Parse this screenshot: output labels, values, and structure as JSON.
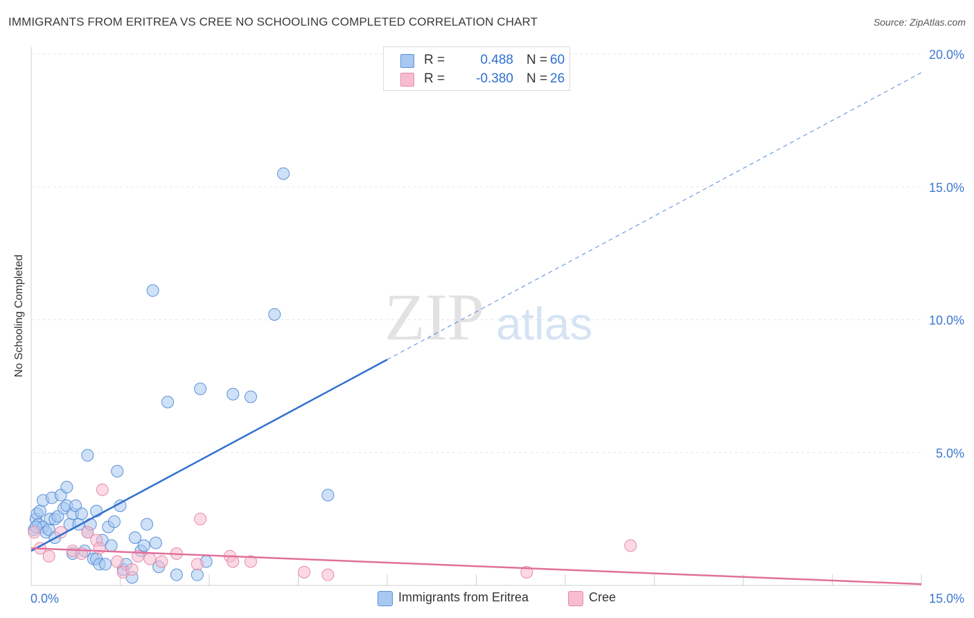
{
  "title": "IMMIGRANTS FROM ERITREA VS CREE NO SCHOOLING COMPLETED CORRELATION CHART",
  "source": "Source: ZipAtlas.com",
  "watermark": {
    "zip": "ZIP",
    "atlas": "atlas"
  },
  "legend_top": {
    "rows": [
      {
        "r_label": "R =",
        "r_value": "0.488",
        "n_label": "N =",
        "n_value": "60",
        "color": "#a7c8f0",
        "edge": "#5b8fd6"
      },
      {
        "r_label": "R =",
        "r_value": "-0.380",
        "n_label": "N =",
        "n_value": "26",
        "color": "#f7bcd0",
        "edge": "#e58aa8"
      }
    ]
  },
  "legend_bottom": [
    {
      "label": "Immigrants from Eritrea",
      "color": "#a7c8f0",
      "edge": "#5b8fd6"
    },
    {
      "label": "Cree",
      "color": "#f7bcd0",
      "edge": "#e58aa8"
    }
  ],
  "chart_data": {
    "type": "scatter",
    "title": "IMMIGRANTS FROM ERITREA VS CREE NO SCHOOLING COMPLETED CORRELATION CHART",
    "xlabel": "",
    "ylabel": "No Schooling Completed",
    "xlim": [
      0,
      15
    ],
    "ylim": [
      0,
      20
    ],
    "x_tick_labels": [
      {
        "value": 0,
        "label": "0.0%"
      },
      {
        "value": 15,
        "label": "15.0%"
      }
    ],
    "y_tick_labels": [
      {
        "value": 5,
        "label": "5.0%"
      },
      {
        "value": 10,
        "label": "10.0%"
      },
      {
        "value": 15,
        "label": "15.0%"
      },
      {
        "value": 20,
        "label": "20.0%"
      }
    ],
    "series": [
      {
        "name": "Immigrants from Eritrea",
        "color": "#a7c8f0",
        "edge": "#5b8fd6",
        "trend": {
          "x0": 0,
          "y0": 1.3,
          "x_solid_end": 6.0,
          "x1": 15.0,
          "y1": 19.3,
          "color": "#2f6fd0"
        },
        "points": [
          [
            0.05,
            2.1
          ],
          [
            0.08,
            2.5
          ],
          [
            0.1,
            2.7
          ],
          [
            0.12,
            2.3
          ],
          [
            0.15,
            2.8
          ],
          [
            0.2,
            2.2
          ],
          [
            0.2,
            3.2
          ],
          [
            0.25,
            2.0
          ],
          [
            0.3,
            2.1
          ],
          [
            0.32,
            2.5
          ],
          [
            0.35,
            3.3
          ],
          [
            0.4,
            1.8
          ],
          [
            0.4,
            2.5
          ],
          [
            0.45,
            2.6
          ],
          [
            0.5,
            3.4
          ],
          [
            0.55,
            2.9
          ],
          [
            0.6,
            3.7
          ],
          [
            0.6,
            3.0
          ],
          [
            0.65,
            2.3
          ],
          [
            0.7,
            1.2
          ],
          [
            0.7,
            2.7
          ],
          [
            0.75,
            3.0
          ],
          [
            0.8,
            2.3
          ],
          [
            0.85,
            2.7
          ],
          [
            0.9,
            1.3
          ],
          [
            0.95,
            2.0
          ],
          [
            0.95,
            4.9
          ],
          [
            1.0,
            2.3
          ],
          [
            1.05,
            1.0
          ],
          [
            1.1,
            2.8
          ],
          [
            1.1,
            1.0
          ],
          [
            1.15,
            0.8
          ],
          [
            1.2,
            1.7
          ],
          [
            1.25,
            0.8
          ],
          [
            1.3,
            2.2
          ],
          [
            1.35,
            1.5
          ],
          [
            1.4,
            2.4
          ],
          [
            1.45,
            4.3
          ],
          [
            1.5,
            3.0
          ],
          [
            1.55,
            0.6
          ],
          [
            1.6,
            0.8
          ],
          [
            1.7,
            0.3
          ],
          [
            1.75,
            1.8
          ],
          [
            1.85,
            1.3
          ],
          [
            1.9,
            1.5
          ],
          [
            1.95,
            2.3
          ],
          [
            2.05,
            11.1
          ],
          [
            2.1,
            1.6
          ],
          [
            2.15,
            0.7
          ],
          [
            2.3,
            6.9
          ],
          [
            2.45,
            0.4
          ],
          [
            2.8,
            0.4
          ],
          [
            2.85,
            7.4
          ],
          [
            2.95,
            0.9
          ],
          [
            3.4,
            7.2
          ],
          [
            3.7,
            7.1
          ],
          [
            4.1,
            10.2
          ],
          [
            4.25,
            15.5
          ],
          [
            5.0,
            3.4
          ],
          [
            0.08,
            2.2
          ]
        ]
      },
      {
        "name": "Cree",
        "color": "#f7bcd0",
        "edge": "#e58aa8",
        "trend": {
          "x0": 0,
          "y0": 1.4,
          "x1": 15.0,
          "y1": 0.05,
          "color": "#e0709a"
        },
        "points": [
          [
            0.05,
            2.0
          ],
          [
            0.15,
            1.4
          ],
          [
            0.3,
            1.1
          ],
          [
            0.5,
            2.0
          ],
          [
            0.7,
            1.3
          ],
          [
            0.85,
            1.2
          ],
          [
            0.95,
            2.0
          ],
          [
            1.1,
            1.7
          ],
          [
            1.15,
            1.4
          ],
          [
            1.2,
            3.6
          ],
          [
            1.45,
            0.9
          ],
          [
            1.55,
            0.5
          ],
          [
            1.7,
            0.6
          ],
          [
            1.8,
            1.1
          ],
          [
            2.0,
            1.0
          ],
          [
            2.2,
            0.9
          ],
          [
            2.45,
            1.2
          ],
          [
            2.8,
            0.8
          ],
          [
            2.85,
            2.5
          ],
          [
            3.35,
            1.1
          ],
          [
            3.4,
            0.9
          ],
          [
            3.7,
            0.9
          ],
          [
            4.6,
            0.5
          ],
          [
            5.0,
            0.4
          ],
          [
            8.35,
            0.5
          ],
          [
            10.1,
            1.5
          ]
        ]
      }
    ]
  }
}
